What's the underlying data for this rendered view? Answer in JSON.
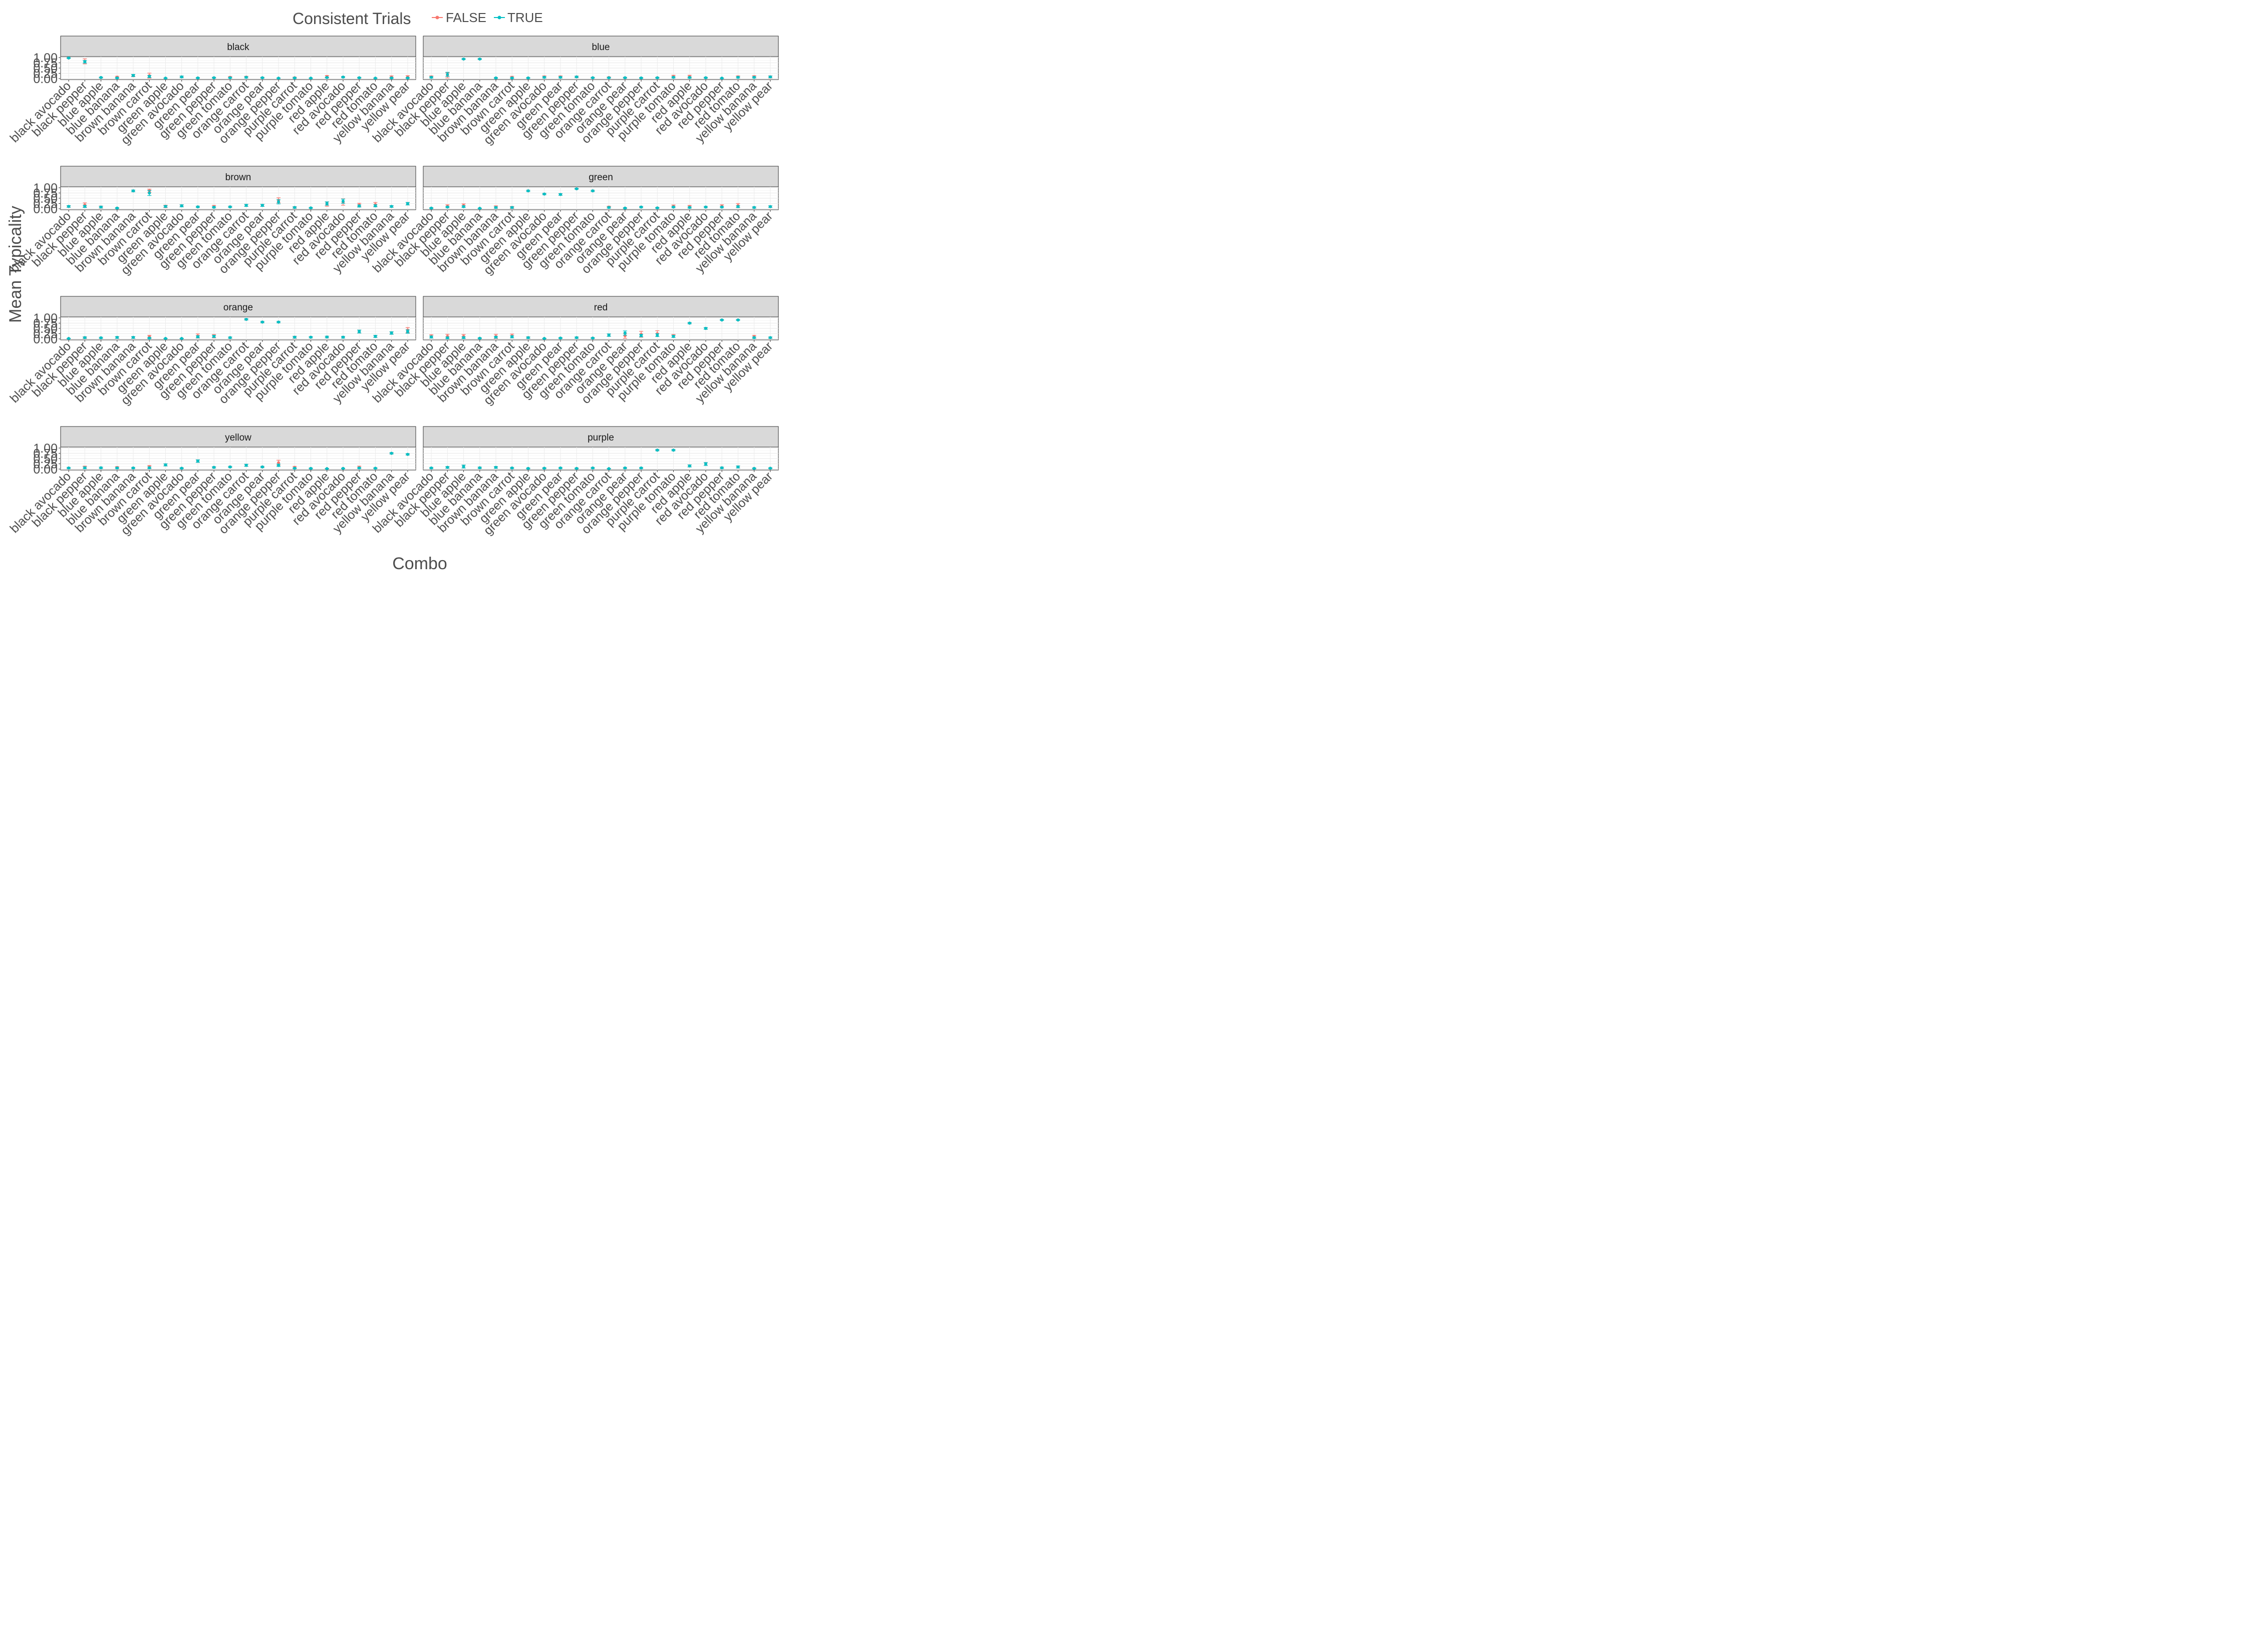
{
  "chart_data": {
    "type": "scatter",
    "legend": {
      "title": "Consistent Trials",
      "placement": "top",
      "items": [
        {
          "label": "FALSE",
          "color": "#F8766D"
        },
        {
          "label": "TRUE",
          "color": "#00BFC4"
        }
      ]
    },
    "xlabel": "Combo",
    "ylabel": "Mean Typicality",
    "ylim": [
      0,
      1
    ],
    "y_ticks": [
      "0.00",
      "0.25",
      "0.50",
      "0.75",
      "1.00"
    ],
    "categories": [
      "black avocado",
      "black pepper",
      "blue apple",
      "blue banana",
      "brown banana",
      "brown carrot",
      "green apple",
      "green avocado",
      "green pear",
      "green pepper",
      "green tomato",
      "orange carrot",
      "orange pear",
      "orange pepper",
      "purple carrot",
      "purple tomato",
      "red apple",
      "red avocado",
      "red pepper",
      "red tomato",
      "yellow banana",
      "yellow pear"
    ],
    "grid": true,
    "panels": [
      {
        "title": "black",
        "true_mean": [
          0.98,
          0.8,
          0.05,
          0.03,
          0.15,
          0.1,
          0.02,
          0.08,
          0.03,
          0.04,
          0.04,
          0.06,
          0.04,
          0.02,
          0.03,
          0.02,
          0.05,
          0.07,
          0.04,
          0.02,
          0.03,
          0.03
        ],
        "true_err": [
          0.02,
          0.06,
          0.02,
          0.02,
          0.05,
          0.05,
          0.01,
          0.04,
          0.02,
          0.02,
          0.02,
          0.03,
          0.02,
          0.01,
          0.02,
          0.01,
          0.02,
          0.03,
          0.02,
          0.01,
          0.02,
          0.02
        ],
        "false_mean": [
          0.98,
          0.82,
          0.05,
          0.07,
          0.14,
          0.14,
          0.02,
          0.08,
          0.03,
          0.04,
          0.06,
          0.07,
          0.04,
          0.02,
          0.04,
          0.02,
          0.1,
          0.07,
          0.04,
          0.02,
          0.08,
          0.08
        ],
        "false_err": [
          0.02,
          0.12,
          0.02,
          0.04,
          0.05,
          0.12,
          0.01,
          0.04,
          0.02,
          0.02,
          0.04,
          0.04,
          0.02,
          0.01,
          0.03,
          0.01,
          0.05,
          0.03,
          0.02,
          0.01,
          0.05,
          0.06
        ]
      },
      {
        "title": "blue",
        "true_mean": [
          0.06,
          0.2,
          0.93,
          0.93,
          0.03,
          0.03,
          0.03,
          0.06,
          0.06,
          0.08,
          0.04,
          0.04,
          0.04,
          0.03,
          0.04,
          0.06,
          0.05,
          0.04,
          0.02,
          0.06,
          0.06,
          0.08
        ],
        "true_err": [
          0.03,
          0.1,
          0.02,
          0.02,
          0.02,
          0.02,
          0.02,
          0.03,
          0.03,
          0.03,
          0.02,
          0.02,
          0.02,
          0.02,
          0.02,
          0.03,
          0.03,
          0.02,
          0.01,
          0.03,
          0.03,
          0.04
        ],
        "false_mean": [
          0.08,
          0.15,
          0.93,
          0.93,
          0.03,
          0.06,
          0.03,
          0.08,
          0.08,
          0.08,
          0.04,
          0.05,
          0.04,
          0.03,
          0.04,
          0.1,
          0.1,
          0.04,
          0.02,
          0.08,
          0.09,
          0.08
        ],
        "false_err": [
          0.05,
          0.12,
          0.02,
          0.02,
          0.02,
          0.05,
          0.02,
          0.05,
          0.05,
          0.04,
          0.02,
          0.03,
          0.02,
          0.02,
          0.02,
          0.06,
          0.06,
          0.02,
          0.01,
          0.05,
          0.05,
          0.05
        ]
      },
      {
        "title": "brown",
        "true_mean": [
          0.11,
          0.11,
          0.08,
          0.03,
          0.85,
          0.75,
          0.11,
          0.14,
          0.09,
          0.07,
          0.09,
          0.16,
          0.16,
          0.33,
          0.06,
          0.04,
          0.25,
          0.36,
          0.13,
          0.14,
          0.11,
          0.24
        ],
        "true_err": [
          0.04,
          0.05,
          0.04,
          0.02,
          0.04,
          0.12,
          0.04,
          0.05,
          0.03,
          0.03,
          0.03,
          0.05,
          0.05,
          0.1,
          0.03,
          0.02,
          0.08,
          0.1,
          0.05,
          0.05,
          0.04,
          0.06
        ],
        "false_mean": [
          0.11,
          0.18,
          0.08,
          0.03,
          0.85,
          0.85,
          0.11,
          0.14,
          0.09,
          0.1,
          0.09,
          0.16,
          0.16,
          0.4,
          0.06,
          0.04,
          0.22,
          0.32,
          0.18,
          0.2,
          0.11,
          0.24
        ],
        "false_err": [
          0.04,
          0.1,
          0.05,
          0.02,
          0.04,
          0.08,
          0.06,
          0.05,
          0.03,
          0.06,
          0.03,
          0.05,
          0.05,
          0.12,
          0.04,
          0.02,
          0.1,
          0.15,
          0.08,
          0.1,
          0.04,
          0.06
        ]
      },
      {
        "title": "green",
        "true_mean": [
          0.03,
          0.08,
          0.1,
          0.02,
          0.06,
          0.06,
          0.85,
          0.7,
          0.68,
          0.95,
          0.85,
          0.06,
          0.03,
          0.08,
          0.04,
          0.08,
          0.06,
          0.08,
          0.08,
          0.1,
          0.06,
          0.1
        ],
        "true_err": [
          0.02,
          0.03,
          0.04,
          0.01,
          0.03,
          0.03,
          0.03,
          0.03,
          0.04,
          0.02,
          0.03,
          0.03,
          0.02,
          0.03,
          0.02,
          0.03,
          0.03,
          0.03,
          0.03,
          0.04,
          0.03,
          0.04
        ],
        "false_mean": [
          0.03,
          0.12,
          0.15,
          0.02,
          0.08,
          0.06,
          0.85,
          0.7,
          0.68,
          0.95,
          0.85,
          0.08,
          0.03,
          0.08,
          0.04,
          0.12,
          0.1,
          0.08,
          0.12,
          0.15,
          0.06,
          0.1
        ],
        "false_err": [
          0.02,
          0.07,
          0.08,
          0.01,
          0.06,
          0.05,
          0.03,
          0.03,
          0.04,
          0.02,
          0.03,
          0.04,
          0.02,
          0.03,
          0.02,
          0.06,
          0.06,
          0.03,
          0.07,
          0.1,
          0.03,
          0.04
        ]
      },
      {
        "title": "orange",
        "true_mean": [
          0.02,
          0.06,
          0.05,
          0.07,
          0.07,
          0.04,
          0.02,
          0.02,
          0.1,
          0.12,
          0.06,
          0.93,
          0.8,
          0.8,
          0.08,
          0.08,
          0.09,
          0.08,
          0.35,
          0.12,
          0.28,
          0.35
        ],
        "true_err": [
          0.01,
          0.03,
          0.03,
          0.04,
          0.04,
          0.03,
          0.01,
          0.01,
          0.05,
          0.05,
          0.03,
          0.03,
          0.03,
          0.03,
          0.04,
          0.03,
          0.04,
          0.04,
          0.07,
          0.05,
          0.06,
          0.08
        ],
        "false_mean": [
          0.02,
          0.06,
          0.05,
          0.07,
          0.07,
          0.1,
          0.02,
          0.02,
          0.14,
          0.13,
          0.06,
          0.93,
          0.8,
          0.8,
          0.08,
          0.08,
          0.09,
          0.08,
          0.35,
          0.12,
          0.28,
          0.42
        ],
        "false_err": [
          0.01,
          0.04,
          0.03,
          0.04,
          0.04,
          0.07,
          0.01,
          0.01,
          0.1,
          0.08,
          0.03,
          0.03,
          0.03,
          0.03,
          0.05,
          0.03,
          0.04,
          0.04,
          0.07,
          0.05,
          0.06,
          0.12
        ]
      },
      {
        "title": "red",
        "true_mean": [
          0.09,
          0.05,
          0.06,
          0.03,
          0.08,
          0.1,
          0.06,
          0.02,
          0.04,
          0.06,
          0.04,
          0.18,
          0.28,
          0.16,
          0.18,
          0.12,
          0.75,
          0.5,
          0.9,
          0.9,
          0.06,
          0.06
        ],
        "true_err": [
          0.05,
          0.04,
          0.04,
          0.02,
          0.04,
          0.05,
          0.03,
          0.01,
          0.02,
          0.03,
          0.02,
          0.06,
          0.1,
          0.06,
          0.07,
          0.05,
          0.03,
          0.04,
          0.02,
          0.02,
          0.03,
          0.03
        ],
        "false_mean": [
          0.12,
          0.12,
          0.12,
          0.03,
          0.12,
          0.14,
          0.06,
          0.02,
          0.04,
          0.06,
          0.04,
          0.18,
          0.15,
          0.22,
          0.25,
          0.14,
          0.75,
          0.5,
          0.9,
          0.9,
          0.1,
          0.06
        ],
        "false_err": [
          0.08,
          0.1,
          0.09,
          0.02,
          0.1,
          0.09,
          0.04,
          0.01,
          0.02,
          0.03,
          0.02,
          0.06,
          0.12,
          0.14,
          0.14,
          0.07,
          0.03,
          0.04,
          0.02,
          0.02,
          0.07,
          0.03
        ]
      },
      {
        "title": "yellow",
        "true_mean": [
          0.05,
          0.06,
          0.06,
          0.05,
          0.05,
          0.06,
          0.2,
          0.04,
          0.38,
          0.08,
          0.1,
          0.18,
          0.1,
          0.18,
          0.04,
          0.03,
          0.02,
          0.03,
          0.05,
          0.04,
          0.75,
          0.7
        ],
        "true_err": [
          0.03,
          0.04,
          0.03,
          0.03,
          0.03,
          0.04,
          0.05,
          0.02,
          0.06,
          0.03,
          0.03,
          0.05,
          0.03,
          0.06,
          0.02,
          0.02,
          0.01,
          0.01,
          0.03,
          0.02,
          0.03,
          0.03
        ],
        "false_mean": [
          0.05,
          0.08,
          0.06,
          0.07,
          0.05,
          0.1,
          0.2,
          0.04,
          0.38,
          0.08,
          0.1,
          0.18,
          0.1,
          0.3,
          0.08,
          0.03,
          0.02,
          0.03,
          0.08,
          0.04,
          0.75,
          0.7
        ],
        "false_err": [
          0.03,
          0.06,
          0.03,
          0.05,
          0.03,
          0.07,
          0.05,
          0.02,
          0.06,
          0.03,
          0.03,
          0.05,
          0.03,
          0.12,
          0.05,
          0.02,
          0.01,
          0.01,
          0.06,
          0.02,
          0.03,
          0.03
        ]
      },
      {
        "title": "purple",
        "true_mean": [
          0.05,
          0.08,
          0.12,
          0.06,
          0.08,
          0.05,
          0.03,
          0.04,
          0.05,
          0.03,
          0.05,
          0.02,
          0.05,
          0.05,
          0.9,
          0.9,
          0.15,
          0.24,
          0.06,
          0.1,
          0.03,
          0.04
        ],
        "true_err": [
          0.03,
          0.04,
          0.07,
          0.03,
          0.04,
          0.03,
          0.02,
          0.02,
          0.03,
          0.02,
          0.03,
          0.01,
          0.03,
          0.03,
          0.03,
          0.03,
          0.05,
          0.07,
          0.03,
          0.05,
          0.02,
          0.02
        ],
        "false_mean": [
          0.05,
          0.08,
          0.12,
          0.06,
          0.08,
          0.05,
          0.03,
          0.04,
          0.05,
          0.03,
          0.05,
          0.02,
          0.05,
          0.05,
          0.9,
          0.9,
          0.15,
          0.24,
          0.06,
          0.1,
          0.03,
          0.04
        ],
        "false_err": [
          0.03,
          0.04,
          0.07,
          0.03,
          0.04,
          0.03,
          0.02,
          0.02,
          0.03,
          0.02,
          0.03,
          0.01,
          0.03,
          0.03,
          0.03,
          0.03,
          0.05,
          0.07,
          0.03,
          0.05,
          0.02,
          0.02
        ]
      }
    ]
  }
}
